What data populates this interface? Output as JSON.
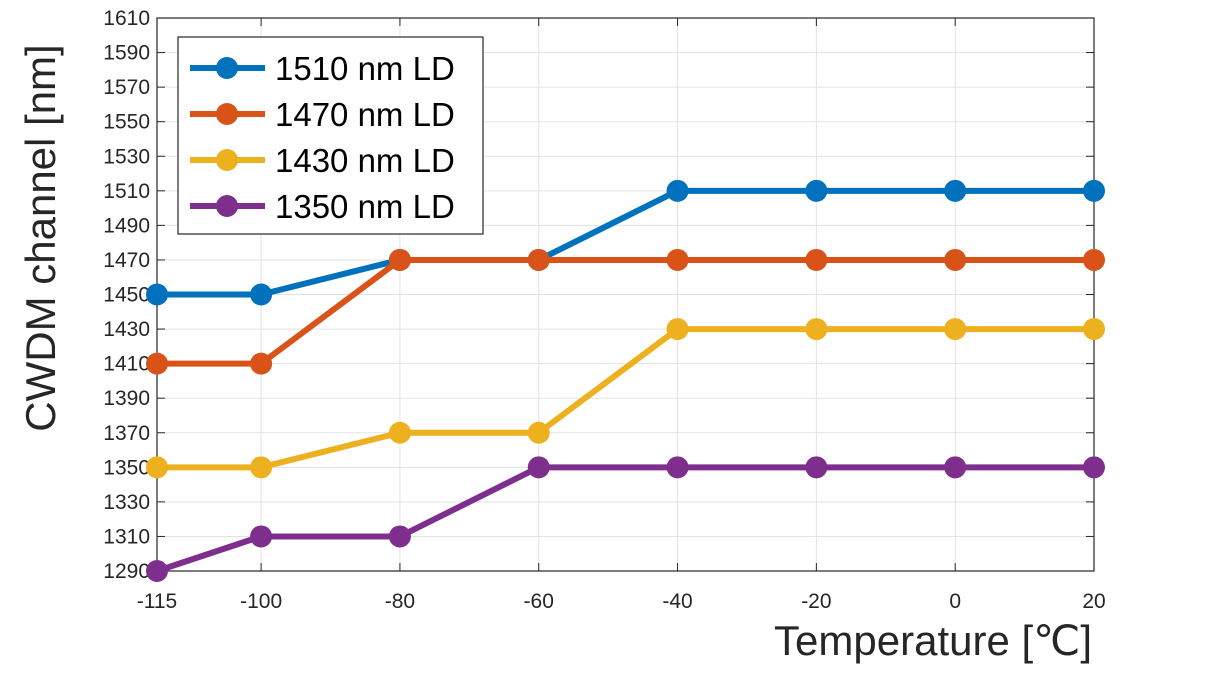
{
  "chart_data": {
    "type": "line",
    "title": "",
    "xlabel": "Temperature [℃]",
    "ylabel": "CWDM channel [nm]",
    "x": [
      -115,
      -100,
      -80,
      -60,
      -40,
      -20,
      0,
      20
    ],
    "x_tick_labels": [
      "-115",
      "-100",
      "-80",
      "-60",
      "-40",
      "-20",
      "0",
      "20"
    ],
    "xlim": [
      -115,
      20
    ],
    "ylim": [
      1290,
      1610
    ],
    "y_ticks": [
      1290,
      1310,
      1330,
      1350,
      1370,
      1390,
      1410,
      1430,
      1450,
      1470,
      1490,
      1510,
      1530,
      1550,
      1570,
      1590,
      1610
    ],
    "grid": true,
    "legend_position": "top-left",
    "series": [
      {
        "name": "1510 nm LD",
        "color": "#0072BD",
        "values": [
          1450,
          1450,
          1470,
          1470,
          1510,
          1510,
          1510,
          1510
        ]
      },
      {
        "name": "1470 nm LD",
        "color": "#D95319",
        "values": [
          1410,
          1410,
          1470,
          1470,
          1470,
          1470,
          1470,
          1470
        ]
      },
      {
        "name": "1430 nm LD",
        "color": "#EDB120",
        "values": [
          1350,
          1350,
          1370,
          1370,
          1430,
          1430,
          1430,
          1430
        ]
      },
      {
        "name": "1350 nm LD",
        "color": "#7E2F8E",
        "values": [
          1290,
          1310,
          1310,
          1350,
          1350,
          1350,
          1350,
          1350
        ]
      }
    ]
  }
}
